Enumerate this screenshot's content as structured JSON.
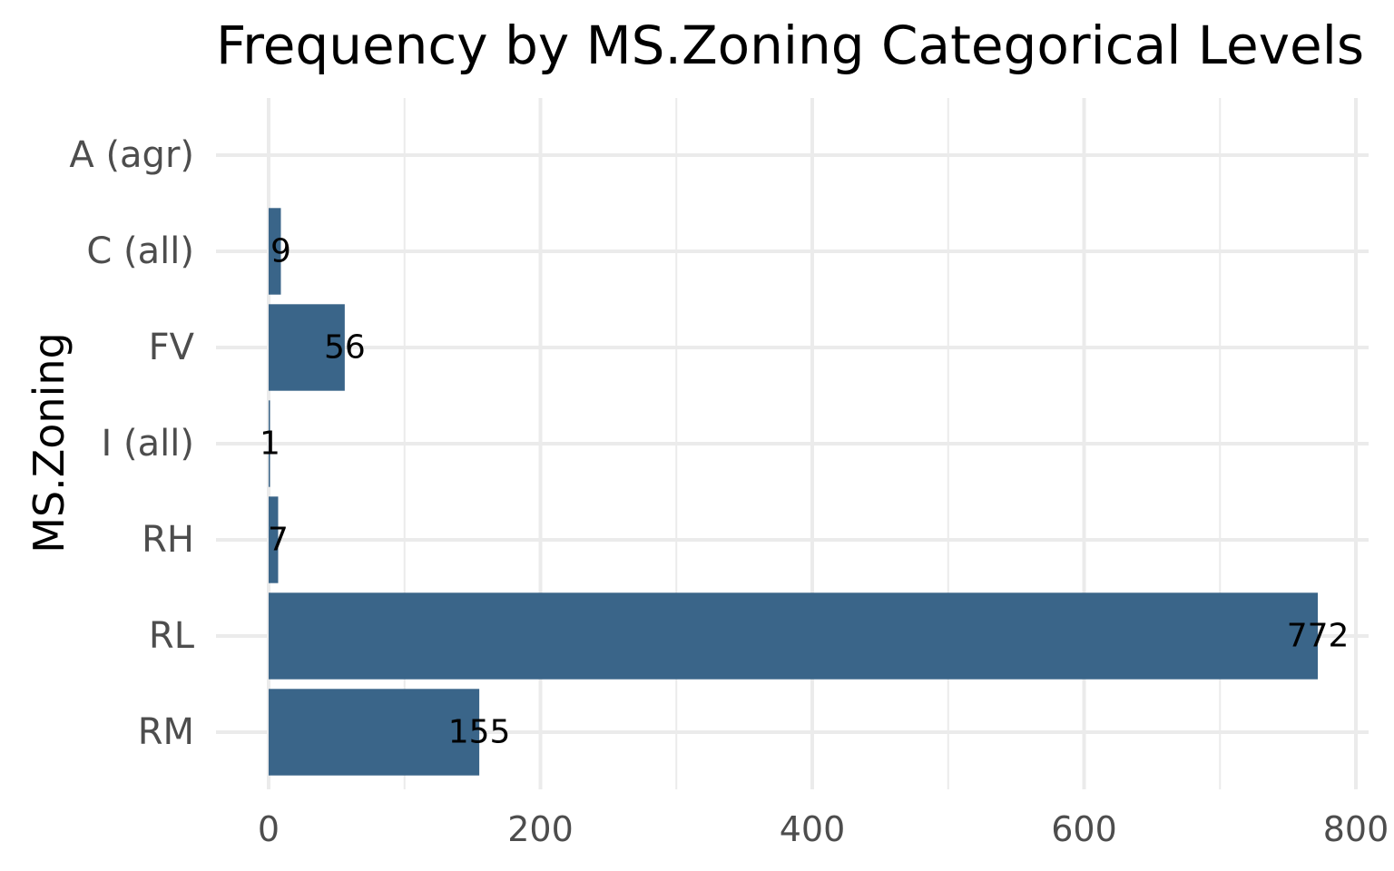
{
  "chart_data": {
    "type": "bar",
    "orientation": "horizontal",
    "title": "Frequency by MS.Zoning Categorical Levels",
    "ylabel": "MS.Zoning",
    "xlabel": "",
    "categories": [
      "A (agr)",
      "C (all)",
      "FV",
      "I (all)",
      "RH",
      "RL",
      "RM"
    ],
    "values": [
      0,
      9,
      56,
      1,
      7,
      772,
      155
    ],
    "data_labels": [
      "",
      "9",
      "56",
      "1",
      "7",
      "772",
      "155"
    ],
    "xlim": [
      0,
      810
    ],
    "x_ticks": [
      0,
      200,
      400,
      600,
      800
    ],
    "x_tick_labels": [
      "0",
      "200",
      "400",
      "600",
      "800"
    ],
    "x_minor_ticks": [
      100,
      300,
      500,
      700
    ],
    "grid": true,
    "bar_color": "#3a6589",
    "legend": "none"
  }
}
